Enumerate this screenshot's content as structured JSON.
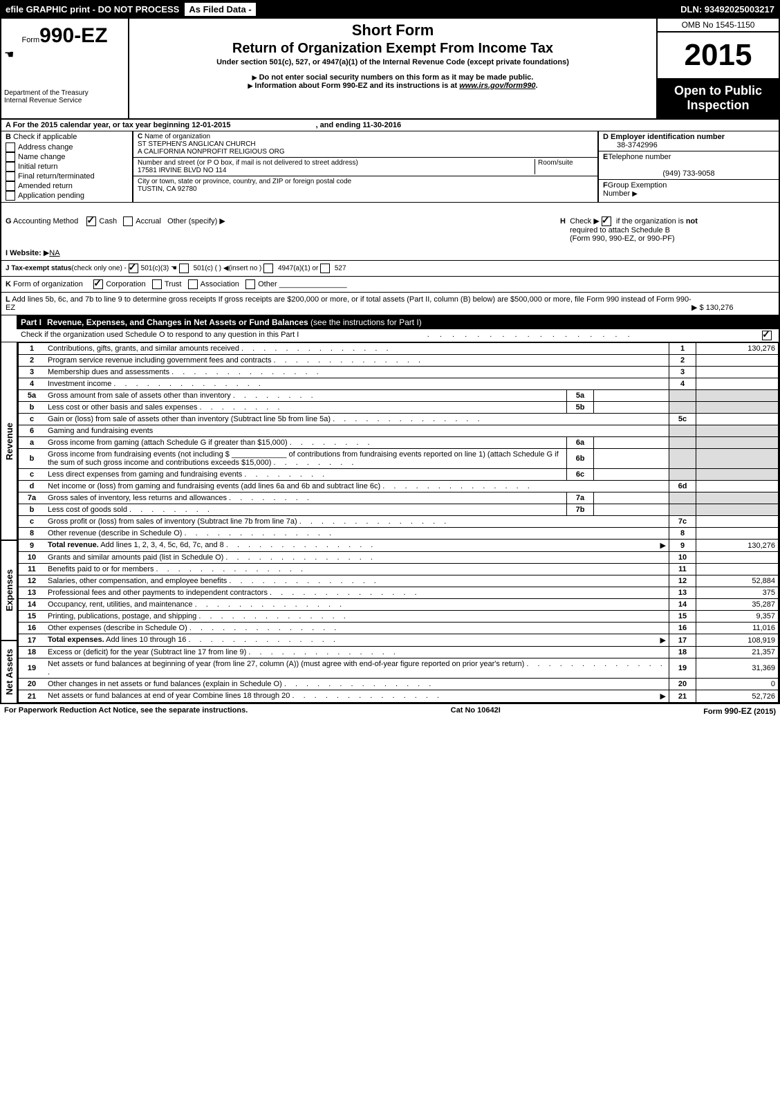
{
  "header": {
    "efile": "efile GRAPHIC print - DO NOT PROCESS",
    "asfiled": "As Filed Data -",
    "dln": "DLN: 93492025003217"
  },
  "form": {
    "form_word": "Form",
    "number": "990-EZ",
    "dept1": "Department of the Treasury",
    "dept2": "Internal Revenue Service",
    "short_form": "Short Form",
    "main_title": "Return of Organization Exempt From Income Tax",
    "subtitle": "Under section 501(c), 527, or 4947(a)(1) of the Internal Revenue Code (except private foundations)",
    "instr1": "Do not enter social security numbers on this form as it may be made public.",
    "instr2a": "Information about Form 990-EZ and its instructions is at ",
    "instr2b": "www.irs.gov/form990",
    "omb": "OMB No 1545-1150",
    "year": "2015",
    "insp1": "Open to Public",
    "insp2": "Inspection"
  },
  "rowA": {
    "label": "A",
    "text1": "For the 2015 calendar year, or tax year beginning ",
    "begin": "12-01-2015",
    "text2": ", and ending ",
    "end": "11-30-2016"
  },
  "colB": {
    "label": "B",
    "title": "Check if applicable",
    "items": [
      "Address change",
      "Name change",
      "Initial return",
      "Final return/terminated",
      "Amended return",
      "Application pending"
    ]
  },
  "colC": {
    "c_label": "C",
    "name_label": "Name of organization",
    "name1": "ST STEPHEN'S ANGLICAN CHURCH",
    "name2": "A CALIFORNIA NONPROFIT RELIGIOUS ORG",
    "addr_label": "Number and street (or P O box, if mail is not delivered to street address)",
    "room_label": "Room/suite",
    "addr": "17581 IRVINE BLVD NO 114",
    "city_label": "City or town, state or province, country, and ZIP or foreign postal code",
    "city": "TUSTIN, CA  92780"
  },
  "colD": {
    "d_label": "D Employer identification number",
    "ein": "38-3742996",
    "e_label": "E",
    "tel_label": "Telephone number",
    "phone": "(949) 733-9058",
    "f_label": "F",
    "grp1": "Group Exemption",
    "grp2": "Number"
  },
  "rowG": {
    "g_label": "G",
    "accounting": "Accounting Method",
    "cash": "Cash",
    "accrual": "Accrual",
    "other": "Other (specify)",
    "h_label": "H",
    "h_text1": "Check",
    "h_text2": "if the organization is",
    "h_not": "not",
    "h_text3": "required to attach Schedule B",
    "h_text4": "(Form 990, 990-EZ, or 990-PF)"
  },
  "rowI": {
    "i_label": "I Website:",
    "website": "NA"
  },
  "rowJ": {
    "j_label": "J Tax-exempt status",
    "check_only": "(check only one) -",
    "opt1": "501(c)(3)",
    "opt2": "501(c) (   )",
    "opt2_insert": "(insert no )",
    "opt3": "4947(a)(1) or",
    "opt4": "527"
  },
  "rowK": {
    "k_label": "K",
    "form_org": "Form of organization",
    "corp": "Corporation",
    "trust": "Trust",
    "assoc": "Association",
    "other": "Other"
  },
  "rowL": {
    "l_label": "L",
    "text": "Add lines 5b, 6c, and 7b to line 9 to determine gross receipts  If gross receipts are $200,000 or more, or if total assets (Part II, column (B) below) are $500,000 or more, file Form 990 instead of Form 990-EZ",
    "amount": "$ 130,276"
  },
  "part1": {
    "label": "Part I",
    "title": "Revenue, Expenses, and Changes in Net Assets or Fund Balances",
    "sub": " (see the instructions for Part I)",
    "checkline": "Check if the organization used Schedule O to respond to any question in this Part I"
  },
  "side_labels": {
    "revenue": "Revenue",
    "expenses": "Expenses",
    "netassets": "Net Assets"
  },
  "lines": [
    {
      "num": "1",
      "desc": "Contributions, gifts, grants, and similar amounts received",
      "amt_n": "1",
      "amt": "130,276"
    },
    {
      "num": "2",
      "desc": "Program service revenue including government fees and contracts",
      "amt_n": "2",
      "amt": ""
    },
    {
      "num": "3",
      "desc": "Membership dues and assessments",
      "amt_n": "3",
      "amt": ""
    },
    {
      "num": "4",
      "desc": "Investment income",
      "amt_n": "4",
      "amt": ""
    },
    {
      "num": "5a",
      "desc": "Gross amount from sale of assets other than inventory",
      "sub_n": "5a",
      "sub_v": ""
    },
    {
      "num": "b",
      "desc": "Less  cost or other basis and sales expenses",
      "sub_n": "5b",
      "sub_v": ""
    },
    {
      "num": "c",
      "desc": "Gain or (loss) from sale of assets other than inventory (Subtract line 5b from line 5a)",
      "amt_n": "5c",
      "amt": ""
    },
    {
      "num": "6",
      "desc": "Gaming and fundraising events"
    },
    {
      "num": "a",
      "desc": "Gross income from gaming (attach Schedule G if greater than $15,000)",
      "sub_n": "6a",
      "sub_v": ""
    },
    {
      "num": "b",
      "desc": "Gross income from fundraising events (not including $ _____________ of contributions from fundraising events reported on line 1) (attach Schedule G if the sum of such gross income and contributions exceeds $15,000)",
      "sub_n": "6b",
      "sub_v": ""
    },
    {
      "num": "c",
      "desc": "Less  direct expenses from gaming and fundraising events",
      "sub_n": "6c",
      "sub_v": ""
    },
    {
      "num": "d",
      "desc": "Net income or (loss) from gaming and fundraising events (add lines 6a and 6b and subtract line 6c)",
      "amt_n": "6d",
      "amt": ""
    },
    {
      "num": "7a",
      "desc": "Gross sales of inventory, less returns and allowances",
      "sub_n": "7a",
      "sub_v": ""
    },
    {
      "num": "b",
      "desc": "Less  cost of goods sold",
      "sub_n": "7b",
      "sub_v": ""
    },
    {
      "num": "c",
      "desc": "Gross profit or (loss) from sales of inventory (Subtract line 7b from line 7a)",
      "amt_n": "7c",
      "amt": ""
    },
    {
      "num": "8",
      "desc": "Other revenue (describe in Schedule O)",
      "amt_n": "8",
      "amt": ""
    },
    {
      "num": "9",
      "desc": "Total revenue. Add lines 1, 2, 3, 4, 5c, 6d, 7c, and 8",
      "bold": true,
      "arrow": true,
      "amt_n": "9",
      "amt": "130,276"
    },
    {
      "num": "10",
      "desc": "Grants and similar amounts paid (list in Schedule O)",
      "amt_n": "10",
      "amt": ""
    },
    {
      "num": "11",
      "desc": "Benefits paid to or for members",
      "amt_n": "11",
      "amt": ""
    },
    {
      "num": "12",
      "desc": "Salaries, other compensation, and employee benefits",
      "amt_n": "12",
      "amt": "52,884"
    },
    {
      "num": "13",
      "desc": "Professional fees and other payments to independent contractors",
      "amt_n": "13",
      "amt": "375"
    },
    {
      "num": "14",
      "desc": "Occupancy, rent, utilities, and maintenance",
      "amt_n": "14",
      "amt": "35,287"
    },
    {
      "num": "15",
      "desc": "Printing, publications, postage, and shipping",
      "amt_n": "15",
      "amt": "9,357"
    },
    {
      "num": "16",
      "desc": "Other expenses (describe in Schedule O)",
      "amt_n": "16",
      "amt": "11,016"
    },
    {
      "num": "17",
      "desc": "Total expenses. Add lines 10 through 16",
      "bold": true,
      "arrow": true,
      "amt_n": "17",
      "amt": "108,919"
    },
    {
      "num": "18",
      "desc": "Excess or (deficit) for the year (Subtract line 17 from line 9)",
      "amt_n": "18",
      "amt": "21,357"
    },
    {
      "num": "19",
      "desc": "Net assets or fund balances at beginning of year (from line 27, column (A)) (must agree with end-of-year figure reported on prior year's return)",
      "amt_n": "19",
      "amt": "31,369"
    },
    {
      "num": "20",
      "desc": "Other changes in net assets or fund balances (explain in Schedule O)",
      "amt_n": "20",
      "amt": "0"
    },
    {
      "num": "21",
      "desc": "Net assets or fund balances at end of year  Combine lines 18 through 20",
      "arrow": true,
      "amt_n": "21",
      "amt": "52,726"
    }
  ],
  "footer": {
    "left": "For Paperwork Reduction Act Notice, see the separate instructions.",
    "mid": "Cat No 10642I",
    "right": "Form 990-EZ (2015)"
  }
}
